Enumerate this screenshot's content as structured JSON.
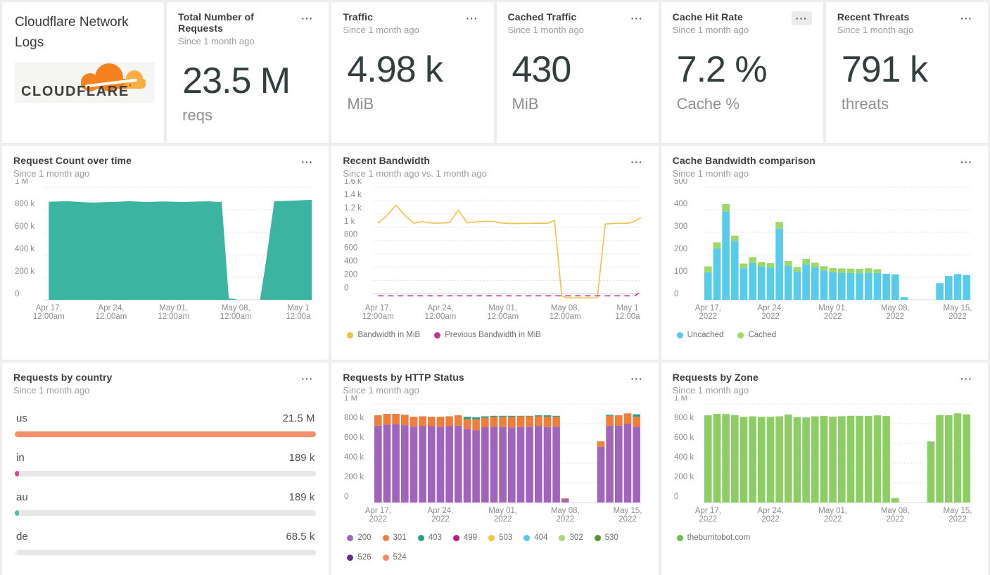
{
  "header": {
    "title": "Cloudflare Network Logs",
    "logo_text": "CLOUDFLARE",
    "logo_mark": "'"
  },
  "icons": {
    "menu": "···",
    "sparkle": "✦"
  },
  "colors": {
    "background": "#efefef",
    "panel": "#ffffff",
    "accent_teal": "#3cb4a2",
    "bandwidth_yellow": "#f0c14b",
    "previous_magenta": "#b9398c",
    "uncached_cyan": "#57cbea",
    "cached_green": "#9ed76a",
    "zone_green": "#8ccd64",
    "status_purple": "#a164bd",
    "status_orange": "#ef7d3c",
    "cloudflare_orange": "#f6821f"
  },
  "stats": [
    {
      "title": "Total Number of Requests",
      "subtitle": "Since 1 month ago",
      "value": "23.5 M",
      "unit": "reqs"
    },
    {
      "title": "Traffic",
      "subtitle": "Since 1 month ago",
      "value": "4.98 k",
      "unit": "MiB"
    },
    {
      "title": "Cached Traffic",
      "subtitle": "Since 1 month ago",
      "value": "430",
      "unit": "MiB"
    },
    {
      "title": "Cache Hit Rate",
      "subtitle": "Since 1 month ago",
      "value": "7.2 %",
      "unit": "Cache %"
    },
    {
      "title": "Recent Threats",
      "subtitle": "Since 1 month ago",
      "value": "791 k",
      "unit": "threats"
    }
  ],
  "panels": {
    "request_count": {
      "title": "Request Count over time",
      "subtitle": "Since 1 month ago"
    },
    "recent_bandwidth": {
      "title": "Recent Bandwidth",
      "subtitle": "Since 1 month ago vs. 1 month ago"
    },
    "cache_bandwidth": {
      "title": "Cache Bandwidth comparison",
      "subtitle": "Since 1 month ago"
    },
    "country": {
      "title": "Requests by country",
      "subtitle": "Since 1 month ago"
    },
    "http_status": {
      "title": "Requests by HTTP Status",
      "subtitle": "Since 1 month ago"
    },
    "zone": {
      "title": "Requests by Zone",
      "subtitle": "Since 1 month ago"
    }
  },
  "country_rows": [
    {
      "label": "us",
      "value": "21.5 M",
      "pct": 100,
      "color": "#f5906b"
    },
    {
      "label": "in",
      "value": "189 k",
      "pct": 1.3,
      "color": "#d6449c"
    },
    {
      "label": "au",
      "value": "189 k",
      "pct": 1.3,
      "color": "#45bfa9"
    },
    {
      "label": "de",
      "value": "68.5 k",
      "pct": 0.9,
      "color": "#f3f3f3"
    }
  ],
  "chart_data": {
    "request_count": {
      "type": "area",
      "title": "Request Count over time",
      "unit": "requests (thousands)",
      "ymax": 1000,
      "ymin": 0,
      "days": 30,
      "color": "#3cb4a2",
      "yticks": [
        {
          "v": 1000,
          "label": "1 M"
        },
        {
          "v": 800,
          "label": "800 k"
        },
        {
          "v": 600,
          "label": "600 k"
        },
        {
          "v": 400,
          "label": "400 k"
        },
        {
          "v": 200,
          "label": "200 k"
        },
        {
          "v": 0,
          "label": "0"
        }
      ],
      "xticks": [
        {
          "d": 0,
          "l1": "Apr 17,",
          "l2": "12:00am"
        },
        {
          "d": 7,
          "l1": "Apr 24,",
          "l2": "12:00am"
        },
        {
          "d": 14,
          "l1": "May 01,",
          "l2": "12:00am"
        },
        {
          "d": 21,
          "l1": "May 08,",
          "l2": "12:00am"
        },
        {
          "d": 28,
          "l1": "May 1",
          "l2": "12:00a"
        }
      ],
      "points": [
        [
          0,
          870
        ],
        [
          1,
          873
        ],
        [
          2,
          876
        ],
        [
          3,
          871
        ],
        [
          4,
          866
        ],
        [
          5,
          863
        ],
        [
          6,
          866
        ],
        [
          7,
          869
        ],
        [
          8,
          872
        ],
        [
          9,
          877
        ],
        [
          10,
          872
        ],
        [
          11,
          869
        ],
        [
          12,
          872
        ],
        [
          13,
          874
        ],
        [
          14,
          871
        ],
        [
          15,
          869
        ],
        [
          16,
          871
        ],
        [
          17,
          873
        ],
        [
          18,
          875
        ],
        [
          19,
          868
        ],
        [
          19.4,
          872
        ],
        [
          20.2,
          12
        ],
        [
          20.9,
          8
        ],
        [
          21.1,
          0
        ],
        [
          23.7,
          0
        ],
        [
          24.3,
          300
        ],
        [
          25.3,
          876
        ],
        [
          26.5,
          878
        ],
        [
          28,
          883
        ],
        [
          29.5,
          888
        ]
      ]
    },
    "recent_bandwidth": {
      "type": "line",
      "title": "Recent Bandwidth",
      "unit": "MiB",
      "ymax": 1600,
      "ymin": -90,
      "days": 30,
      "yticks": [
        {
          "v": 1600,
          "label": "1.6 k"
        },
        {
          "v": 1400,
          "label": "1.4 k"
        },
        {
          "v": 1200,
          "label": "1.2 k"
        },
        {
          "v": 1000,
          "label": "1 k"
        },
        {
          "v": 800,
          "label": "800"
        },
        {
          "v": 600,
          "label": "600"
        },
        {
          "v": 400,
          "label": "400"
        },
        {
          "v": 200,
          "label": "200"
        },
        {
          "v": 0,
          "label": "0"
        }
      ],
      "xticks": [
        {
          "d": 0,
          "l1": "Apr 17,",
          "l2": "12:00am"
        },
        {
          "d": 7,
          "l1": "Apr 24,",
          "l2": "12:00am"
        },
        {
          "d": 14,
          "l1": "May 01,",
          "l2": "12:00am"
        },
        {
          "d": 21,
          "l1": "May 08,",
          "l2": "12:00am"
        },
        {
          "d": 28,
          "l1": "May 1",
          "l2": "12:00a"
        }
      ],
      "series": [
        {
          "name": "Bandwidth in MiB",
          "color": "#f0c14b",
          "points": [
            [
              0,
              1060
            ],
            [
              1,
              1175
            ],
            [
              2,
              1330
            ],
            [
              3,
              1180
            ],
            [
              4,
              1060
            ],
            [
              5,
              1085
            ],
            [
              6,
              1062
            ],
            [
              7,
              1060
            ],
            [
              8,
              1070
            ],
            [
              9,
              1255
            ],
            [
              10,
              1063
            ],
            [
              11,
              1080
            ],
            [
              12,
              1090
            ],
            [
              13,
              1086
            ],
            [
              14,
              1060
            ],
            [
              15,
              1054
            ],
            [
              16,
              1058
            ],
            [
              17,
              1056
            ],
            [
              18,
              1060
            ],
            [
              19,
              1058
            ],
            [
              19.8,
              1105
            ],
            [
              20.6,
              -30
            ],
            [
              21.2,
              -60
            ],
            [
              24.6,
              -60
            ],
            [
              25.5,
              1048
            ],
            [
              26.5,
              1056
            ],
            [
              28,
              1058
            ],
            [
              28.7,
              1082
            ],
            [
              29.5,
              1145
            ]
          ]
        },
        {
          "name": "Previous Bandwidth in MiB",
          "color": "#b9398c",
          "dash": true,
          "points": [
            [
              0,
              -30
            ],
            [
              28.8,
              -30
            ],
            [
              29.5,
              30
            ]
          ]
        }
      ],
      "legend": [
        {
          "label": "Bandwidth in MiB",
          "color": "#f0c14b"
        },
        {
          "label": "Previous Bandwidth in MiB",
          "color": "#b9398c"
        }
      ]
    },
    "cache_bandwidth": {
      "type": "bars",
      "title": "Cache Bandwidth comparison",
      "unit": "MiB",
      "ymax": 500,
      "ymin": 0,
      "days": 30,
      "colors": [
        "#57cbea",
        "#9ed76a"
      ],
      "names": [
        "Uncached",
        "Cached"
      ],
      "yticks": [
        {
          "v": 500,
          "label": "500"
        },
        {
          "v": 400,
          "label": "400"
        },
        {
          "v": 300,
          "label": "300"
        },
        {
          "v": 200,
          "label": "200"
        },
        {
          "v": 100,
          "label": "100"
        },
        {
          "v": 0,
          "label": "0"
        }
      ],
      "xticks": [
        {
          "d": 0,
          "l1": "Apr 17,",
          "l2": "2022"
        },
        {
          "d": 7,
          "l1": "Apr 24,",
          "l2": "2022"
        },
        {
          "d": 14,
          "l1": "May 01,",
          "l2": "2022"
        },
        {
          "d": 21,
          "l1": "May 08,",
          "l2": "2022"
        },
        {
          "d": 28,
          "l1": "May 15,",
          "l2": "2022"
        }
      ],
      "stacks": [
        [
          122,
          26
        ],
        [
          228,
          27
        ],
        [
          392,
          33
        ],
        [
          262,
          23
        ],
        [
          140,
          21
        ],
        [
          163,
          26
        ],
        [
          148,
          20
        ],
        [
          143,
          20
        ],
        [
          316,
          30
        ],
        [
          150,
          22
        ],
        [
          126,
          20
        ],
        [
          158,
          24
        ],
        [
          144,
          21
        ],
        [
          130,
          19
        ],
        [
          122,
          19
        ],
        [
          120,
          19
        ],
        [
          119,
          19
        ],
        [
          118,
          19
        ],
        [
          121,
          19
        ],
        [
          119,
          17
        ],
        [
          116,
          0
        ],
        [
          113,
          0
        ],
        [
          12,
          0
        ],
        [
          0,
          0
        ],
        [
          0,
          0
        ],
        [
          0,
          0
        ],
        [
          74,
          0
        ],
        [
          106,
          0
        ],
        [
          114,
          0
        ],
        [
          110,
          0
        ]
      ],
      "legend": [
        {
          "label": "Uncached",
          "color": "#57cbea"
        },
        {
          "label": "Cached",
          "color": "#9ed76a"
        }
      ]
    },
    "http_status": {
      "type": "bars",
      "title": "Requests by HTTP Status",
      "unit": "requests (thousands)",
      "ymax": 1000,
      "ymin": 0,
      "days": 30,
      "colors": [
        "#a164bd",
        "#ef7d3c",
        "#2a9d85"
      ],
      "names": [
        "200",
        "301",
        "403"
      ],
      "yticks": [
        {
          "v": 1000,
          "label": "1 M"
        },
        {
          "v": 800,
          "label": "800 k"
        },
        {
          "v": 600,
          "label": "600 k"
        },
        {
          "v": 400,
          "label": "400 k"
        },
        {
          "v": 200,
          "label": "200 k"
        },
        {
          "v": 0,
          "label": "0"
        }
      ],
      "xticks": [
        {
          "d": 0,
          "l1": "Apr 17,",
          "l2": "2022"
        },
        {
          "d": 7,
          "l1": "Apr 24,",
          "l2": "2022"
        },
        {
          "d": 14,
          "l1": "May 01,",
          "l2": "2022"
        },
        {
          "d": 21,
          "l1": "May 08,",
          "l2": "2022"
        },
        {
          "d": 28,
          "l1": "May 15,",
          "l2": "2022"
        }
      ],
      "stacks": [
        [
          780,
          105,
          0
        ],
        [
          790,
          110,
          0
        ],
        [
          795,
          105,
          0
        ],
        [
          785,
          105,
          0
        ],
        [
          770,
          100,
          0
        ],
        [
          775,
          100,
          0
        ],
        [
          775,
          95,
          0
        ],
        [
          770,
          100,
          0
        ],
        [
          775,
          100,
          0
        ],
        [
          780,
          105,
          0
        ],
        [
          745,
          100,
          25
        ],
        [
          735,
          110,
          20
        ],
        [
          765,
          95,
          15
        ],
        [
          770,
          100,
          10
        ],
        [
          765,
          105,
          10
        ],
        [
          760,
          110,
          10
        ],
        [
          765,
          110,
          5
        ],
        [
          770,
          105,
          5
        ],
        [
          775,
          100,
          10
        ],
        [
          765,
          105,
          15
        ],
        [
          770,
          100,
          10
        ],
        [
          35,
          8,
          0
        ],
        [
          0,
          0,
          0
        ],
        [
          0,
          0,
          0
        ],
        [
          0,
          0,
          0
        ],
        [
          565,
          55,
          0
        ],
        [
          775,
          105,
          10
        ],
        [
          780,
          105,
          0
        ],
        [
          800,
          105,
          0
        ],
        [
          770,
          100,
          25
        ]
      ],
      "legend": [
        {
          "label": "200",
          "color": "#a164bd"
        },
        {
          "label": "301",
          "color": "#ef7d3c"
        },
        {
          "label": "403",
          "color": "#2a9d85"
        },
        {
          "label": "499",
          "color": "#c2188c"
        },
        {
          "label": "503",
          "color": "#f5c33b"
        },
        {
          "label": "404",
          "color": "#56c7e8"
        },
        {
          "label": "302",
          "color": "#a7d978"
        },
        {
          "label": "530",
          "color": "#54962c"
        },
        {
          "label": "526",
          "color": "#5f2d91"
        },
        {
          "label": "524",
          "color": "#f58a68"
        }
      ]
    },
    "zone": {
      "type": "bars",
      "title": "Requests by Zone",
      "unit": "requests (thousands)",
      "ymax": 1000,
      "ymin": 0,
      "days": 30,
      "colors": [
        "#8ccd64"
      ],
      "names": [
        "theburritobot.com"
      ],
      "yticks": [
        {
          "v": 1000,
          "label": "1 M"
        },
        {
          "v": 800,
          "label": "800 k"
        },
        {
          "v": 600,
          "label": "600 k"
        },
        {
          "v": 400,
          "label": "400 k"
        },
        {
          "v": 200,
          "label": "200 k"
        },
        {
          "v": 0,
          "label": "0"
        }
      ],
      "xticks": [
        {
          "d": 0,
          "l1": "Apr 17,",
          "l2": "2022"
        },
        {
          "d": 7,
          "l1": "Apr 24,",
          "l2": "2022"
        },
        {
          "d": 14,
          "l1": "May 01,",
          "l2": "2022"
        },
        {
          "d": 21,
          "l1": "May 08,",
          "l2": "2022"
        },
        {
          "d": 28,
          "l1": "May 15,",
          "l2": "2022"
        }
      ],
      "stacks": [
        [
          885
        ],
        [
          900
        ],
        [
          898
        ],
        [
          888
        ],
        [
          870
        ],
        [
          874
        ],
        [
          870
        ],
        [
          870
        ],
        [
          874
        ],
        [
          893
        ],
        [
          868
        ],
        [
          863
        ],
        [
          874
        ],
        [
          878
        ],
        [
          872
        ],
        [
          876
        ],
        [
          880
        ],
        [
          880
        ],
        [
          878
        ],
        [
          884
        ],
        [
          878
        ],
        [
          45
        ],
        [
          0
        ],
        [
          0
        ],
        [
          0
        ],
        [
          620
        ],
        [
          888
        ],
        [
          886
        ],
        [
          905
        ],
        [
          895
        ]
      ],
      "legend": [
        {
          "label": "theburritobot.com",
          "color": "#67bf4e"
        }
      ]
    }
  }
}
